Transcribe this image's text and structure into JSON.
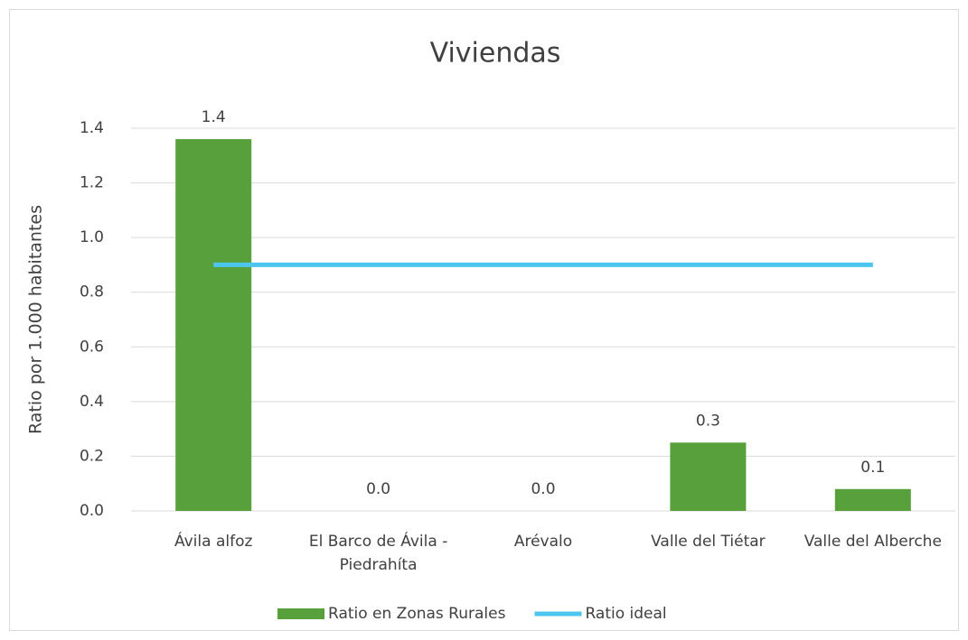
{
  "chart_data": {
    "type": "bar",
    "title": "Viviendas",
    "y_label": "Ratio por 1.000 habitantes",
    "categories": [
      "Ávila alfoz",
      "El Barco de Ávila - Piedrahíta",
      "Arévalo",
      "Valle del Tiétar",
      "Valle del Alberche"
    ],
    "series": [
      {
        "name": "Ratio en Zonas Rurales",
        "type": "bar",
        "color": "#57a03b",
        "values": [
          1.36,
          0,
          0,
          0.25,
          0.08
        ],
        "value_labels": [
          "1.4",
          "0.0",
          "0.0",
          "0.3",
          "0.1"
        ]
      },
      {
        "name": "Ratio ideal",
        "type": "line",
        "color": "#4cc6ee",
        "values": [
          0.9,
          0.9,
          0.9,
          0.9,
          0.9
        ]
      }
    ],
    "ylim": [
      0,
      1.4
    ],
    "yticks": [
      {
        "value": 0,
        "label": "0.0"
      },
      0.2,
      0.4,
      0.6,
      0.8,
      {
        "value": 1,
        "label": "1.0"
      },
      1.2,
      1.4
    ],
    "grid": true,
    "legend": "bottom"
  }
}
